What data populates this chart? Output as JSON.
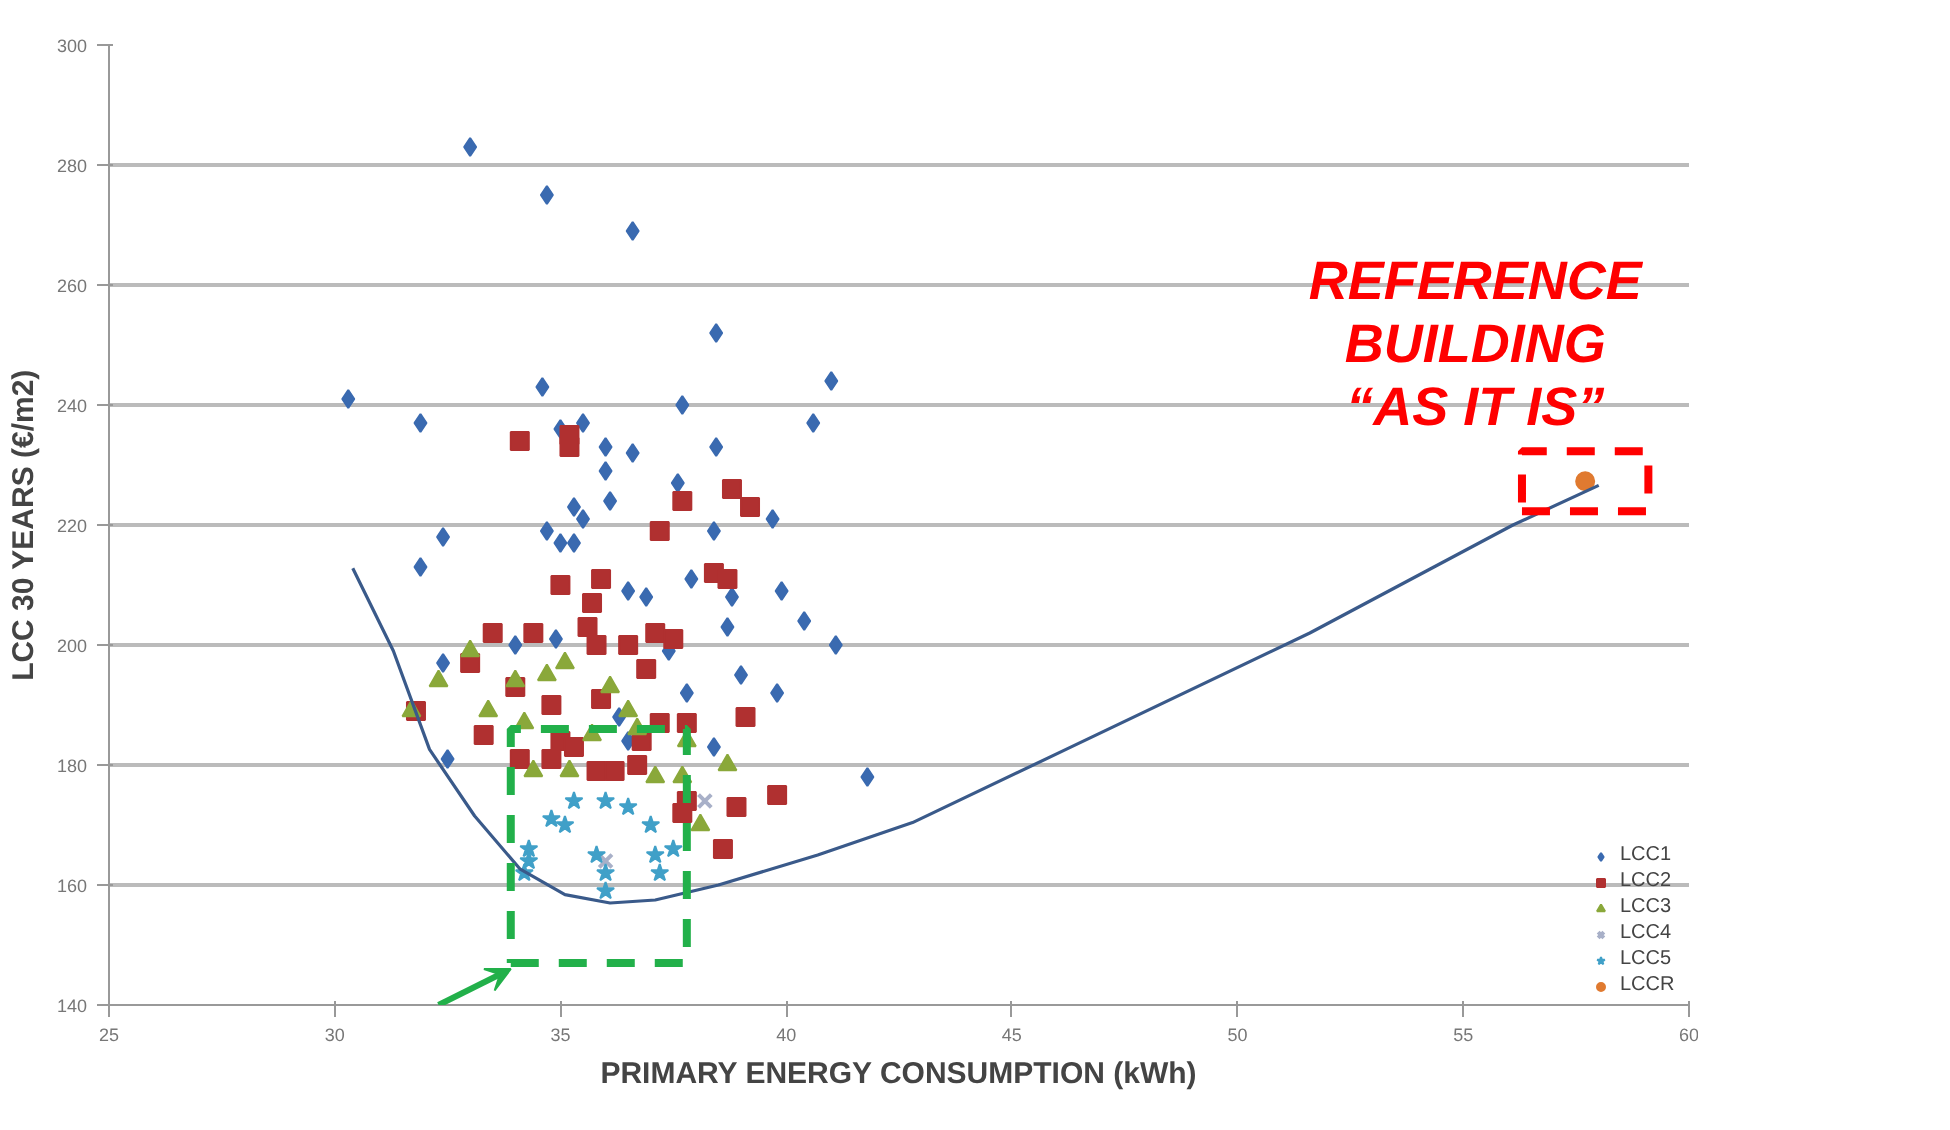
{
  "chart_data": {
    "type": "scatter",
    "xlabel": "PRIMARY ENERGY CONSUMPTION (kWh)",
    "ylabel": "LCC 30 YEARS (€/m2)",
    "xlim": [
      25,
      60
    ],
    "xticks": [
      25,
      30,
      35,
      40,
      45,
      50,
      55,
      60
    ],
    "ylim": [
      140,
      300
    ],
    "yticks": [
      140,
      160,
      180,
      200,
      220,
      240,
      260,
      280,
      300
    ],
    "grid": "y",
    "legend": "bottom right",
    "annotations": [
      {
        "text": "REFERENCE\nBUILDING\n“AS IT IS”",
        "x": 57.7,
        "y": 227.3
      }
    ],
    "series": [
      {
        "name": "LCC1",
        "color": "#3a6ab0",
        "marker": "diamond",
        "x": [
          33.0,
          34.7,
          36.6,
          38.45,
          30.3,
          31.9,
          34.6,
          37.7,
          41.0,
          40.6,
          38.45,
          35.5,
          35.0,
          36.0,
          36.6,
          36.0,
          36.1,
          35.3,
          35.5,
          37.6,
          38.4,
          39.7,
          34.7,
          35.0,
          35.3,
          32.4,
          31.9,
          39.9,
          40.4,
          41.1,
          41.8,
          39.0,
          39.8,
          38.7,
          38.8,
          37.9,
          38.4,
          37.8,
          36.5,
          36.9,
          32.4,
          32.5,
          34.0,
          34.9,
          36.3,
          37.4,
          36.5
        ],
        "values": [
          283,
          275,
          269,
          252,
          241,
          237,
          243,
          240,
          244,
          237,
          233,
          237,
          236,
          233,
          232,
          229,
          224,
          223,
          221,
          227,
          219,
          221,
          219,
          217,
          217,
          218,
          213,
          209,
          204,
          200,
          178,
          195,
          192,
          203,
          208,
          211,
          183,
          192,
          209,
          208,
          197,
          181,
          200,
          201,
          188,
          199,
          184
        ]
      },
      {
        "name": "LCC2",
        "color": "#b03030",
        "marker": "square",
        "x": [
          34.1,
          35.2,
          35.2,
          38.8,
          39.2,
          37.7,
          37.2,
          35.0,
          35.9,
          35.7,
          35.6,
          33.5,
          34.4,
          33.0,
          35.8,
          36.5,
          37.1,
          37.5,
          36.9,
          38.4,
          38.7,
          31.8,
          34.0,
          34.8,
          33.3,
          35.0,
          35.3,
          34.1,
          34.8,
          35.8,
          36.2,
          36.7,
          37.2,
          37.8,
          35.9,
          36.8,
          39.1,
          38.9,
          39.8,
          37.8,
          38.6,
          37.7
        ],
        "values": [
          234,
          235,
          233,
          226,
          223,
          224,
          219,
          210,
          211,
          207,
          203,
          202,
          202,
          197,
          200,
          200,
          202,
          201,
          196,
          212,
          211,
          189,
          193,
          190,
          185,
          184,
          183,
          181,
          181,
          179,
          179,
          180,
          187,
          187,
          191,
          184,
          188,
          173,
          175,
          174,
          166,
          172
        ]
      },
      {
        "name": "LCC3",
        "color": "#8aa83a",
        "marker": "triangle",
        "x": [
          31.7,
          32.3,
          33.0,
          33.4,
          34.0,
          34.7,
          35.1,
          34.2,
          34.4,
          35.2,
          36.1,
          36.7,
          37.1,
          37.8,
          37.7,
          38.7,
          38.1,
          35.7,
          36.5
        ],
        "values": [
          189,
          194,
          199,
          189,
          194,
          195,
          197,
          187,
          179,
          179,
          193,
          186,
          178,
          184,
          178,
          180,
          170,
          185,
          189
        ]
      },
      {
        "name": "LCC4",
        "color": "#a8b0c8",
        "marker": "cross",
        "x": [
          38.2,
          36.0
        ],
        "values": [
          174,
          164
        ]
      },
      {
        "name": "LCC5",
        "color": "#40a0c8",
        "marker": "star",
        "x": [
          35.3,
          36.0,
          35.1,
          34.3,
          34.3,
          34.2,
          35.8,
          36.0,
          36.0,
          37.0,
          37.1,
          37.2,
          37.5,
          36.5,
          34.8
        ],
        "values": [
          174,
          174,
          170,
          166,
          164,
          162,
          165,
          162,
          159,
          170,
          165,
          162,
          166,
          173,
          171
        ]
      },
      {
        "name": "LCCR",
        "color": "#e07a30",
        "marker": "circle",
        "x": [
          57.7
        ],
        "values": [
          227.3
        ]
      },
      {
        "type": "line",
        "color": "#3a5a8a",
        "marker": "none",
        "x": [
          30.4,
          31.3,
          32.1,
          33.1,
          34.1,
          35.1,
          36.1,
          37.1,
          38.5,
          40.7,
          42.8,
          46.2,
          51.6,
          56.1,
          58.0
        ],
        "values": [
          212.8,
          199,
          182.6,
          171.5,
          162.7,
          158.4,
          157,
          157.5,
          160,
          165,
          170.4,
          182.6,
          202,
          220,
          226.6
        ]
      }
    ]
  }
}
